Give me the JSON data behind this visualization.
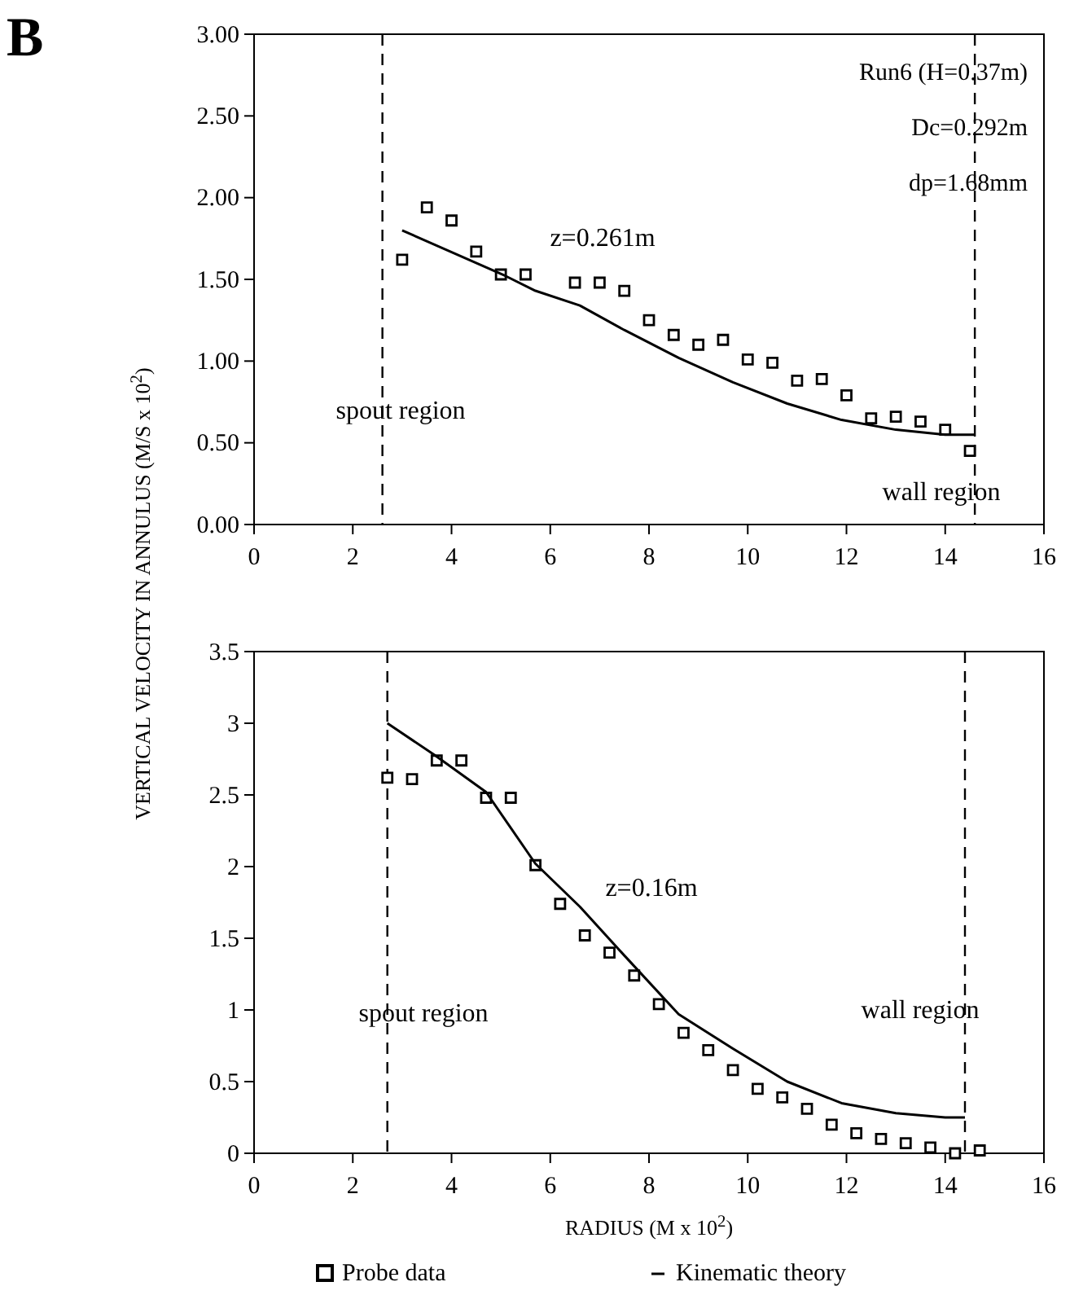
{
  "chart_data": [
    {
      "type": "scatter",
      "ylabel": "VERTICAL VELOCITY IN ANNULUS (M/S x 10$^{2}$)",
      "annotations": [
        "B",
        "Run6 (H=0.37m)",
        "Dc=0.292m",
        "dp=1.68mm",
        "z=0.261m",
        "spout region",
        "wall region"
      ],
      "xlim": [
        0,
        16
      ],
      "xticks": [
        0,
        2,
        4,
        6,
        8,
        10,
        12,
        14,
        16
      ],
      "ylim": [
        0,
        3
      ],
      "yticks": [
        {
          "value": 0,
          "label": "0.00"
        },
        {
          "value": 0.5,
          "label": "0.50"
        },
        {
          "value": 1,
          "label": "1.00"
        },
        {
          "value": 1.5,
          "label": "1.50"
        },
        {
          "value": 2,
          "label": "2.00"
        },
        {
          "value": 2.5,
          "label": "2.50"
        },
        {
          "value": 3,
          "label": "3.00"
        }
      ],
      "grid": false,
      "ref_lines": [
        {
          "axis": "x",
          "value": 2.6,
          "line_style": "dashed"
        },
        {
          "axis": "x",
          "value": 14.6,
          "line_style": "dashed"
        }
      ],
      "series": [
        {
          "color": "#000000",
          "marker": "square",
          "x": [
            3.0,
            3.5,
            4.0,
            4.5,
            5.0,
            5.5,
            6.5,
            7.0,
            7.5,
            8.0,
            8.5,
            9.0,
            9.5,
            10.0,
            10.5,
            11.0,
            11.5,
            12.0,
            12.5,
            13.0,
            13.5,
            14.0,
            14.5
          ],
          "values": [
            1.62,
            1.94,
            1.86,
            1.67,
            1.53,
            1.53,
            1.48,
            1.48,
            1.43,
            1.25,
            1.16,
            1.1,
            1.13,
            1.01,
            0.99,
            0.88,
            0.89,
            0.79,
            0.65,
            0.66,
            0.63,
            0.58,
            0.45
          ]
        },
        {
          "type": "line",
          "color": "#000000",
          "marker": "none",
          "x": [
            3.0,
            5.1,
            5.7,
            6.6,
            7.5,
            8.6,
            9.7,
            10.8,
            11.9,
            13.0,
            14.0,
            14.6
          ],
          "values": [
            1.8,
            1.52,
            1.43,
            1.34,
            1.19,
            1.02,
            0.87,
            0.74,
            0.64,
            0.58,
            0.55,
            0.55
          ]
        }
      ]
    },
    {
      "type": "scatter",
      "xlabel": "RADIUS (M x 10$^{2}$)",
      "annotations": [
        "z=0.16m",
        "spout region",
        "wall region"
      ],
      "xlim": [
        0,
        16
      ],
      "xticks": [
        0,
        2,
        4,
        6,
        8,
        10,
        12,
        14,
        16
      ],
      "ylim": [
        0,
        3.5
      ],
      "yticks": [
        0,
        0.5,
        1,
        1.5,
        2,
        2.5,
        3,
        3.5
      ],
      "grid": false,
      "legend": "bottom",
      "ref_lines": [
        {
          "axis": "x",
          "value": 2.7,
          "line_style": "dashed"
        },
        {
          "axis": "x",
          "value": 14.4,
          "line_style": "dashed"
        }
      ],
      "series": [
        {
          "name": "Probe data",
          "color": "#000000",
          "marker": "square",
          "x": [
            2.7,
            3.2,
            3.7,
            4.2,
            4.7,
            5.2,
            5.7,
            6.2,
            6.7,
            7.2,
            7.7,
            8.2,
            8.7,
            9.2,
            9.7,
            10.2,
            10.7,
            11.2,
            11.7,
            12.2,
            12.7,
            13.2,
            13.7,
            14.2,
            14.7
          ],
          "values": [
            2.62,
            2.61,
            2.74,
            2.74,
            2.48,
            2.48,
            2.01,
            1.74,
            1.52,
            1.4,
            1.24,
            1.04,
            0.84,
            0.72,
            0.58,
            0.45,
            0.39,
            0.31,
            0.2,
            0.14,
            0.1,
            0.07,
            0.04,
            0.0,
            0.02
          ]
        },
        {
          "type": "line",
          "name": "Kinematic theory",
          "color": "#000000",
          "marker": "none",
          "x": [
            2.7,
            3.65,
            4.7,
            5.7,
            6.6,
            7.5,
            8.6,
            9.7,
            10.8,
            11.9,
            13.0,
            14.0,
            14.4
          ],
          "values": [
            3.0,
            2.78,
            2.52,
            2.02,
            1.72,
            1.38,
            0.97,
            0.73,
            0.5,
            0.35,
            0.28,
            0.25,
            0.25
          ]
        }
      ]
    }
  ]
}
